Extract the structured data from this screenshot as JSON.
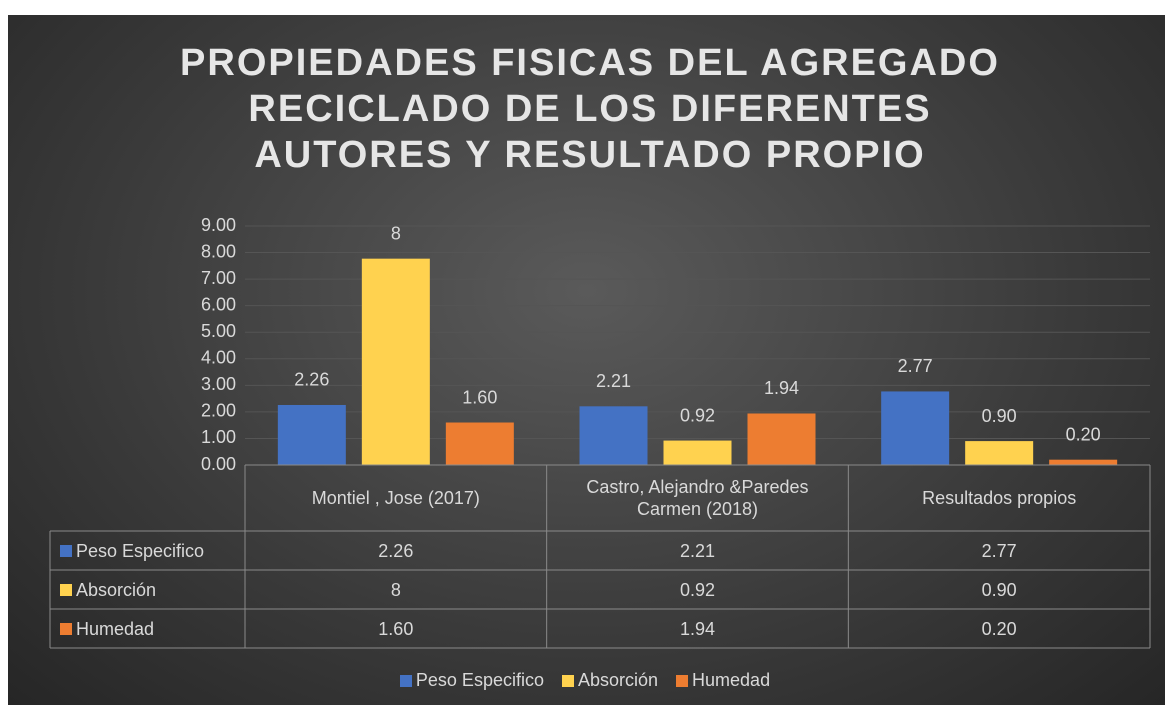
{
  "chart_data": {
    "type": "bar",
    "title": "PROPIEDADES FISICAS DEL AGREGADO RECICLADO DE LOS DIFERENTES AUTORES Y RESULTADO PROPIO",
    "categories": [
      "Montiel , Jose (2017)",
      "Castro, Alejandro &Paredes Carmen (2018)",
      "Resultados propios"
    ],
    "series": [
      {
        "name": "Peso Especifico",
        "color": "#4472c4",
        "values": [
          2.26,
          2.21,
          2.77
        ],
        "value_labels": [
          "2.26",
          "2.21",
          "2.77"
        ]
      },
      {
        "name": "Absorción",
        "color": "#ffd24f",
        "values": [
          7.77,
          0.92,
          0.9
        ],
        "value_labels": [
          "8",
          "0.92",
          "0.90"
        ]
      },
      {
        "name": "Humedad",
        "color": "#ed7d31",
        "values": [
          1.6,
          1.94,
          0.2
        ],
        "value_labels": [
          "1.60",
          "1.94",
          "0.20"
        ]
      }
    ],
    "ylim": [
      0,
      9
    ],
    "yticks": [
      {
        "value": 0,
        "label": "0.00"
      },
      {
        "value": 1,
        "label": "1.00"
      },
      {
        "value": 2,
        "label": "2.00"
      },
      {
        "value": 3,
        "label": "3.00"
      },
      {
        "value": 4,
        "label": "4.00"
      },
      {
        "value": 5,
        "label": "5.00"
      },
      {
        "value": 6,
        "label": "6.00"
      },
      {
        "value": 7,
        "label": "7.00"
      },
      {
        "value": 8,
        "label": "8.00"
      },
      {
        "value": 9,
        "label": "9.00"
      }
    ],
    "grid": true,
    "legend": "bottom"
  }
}
